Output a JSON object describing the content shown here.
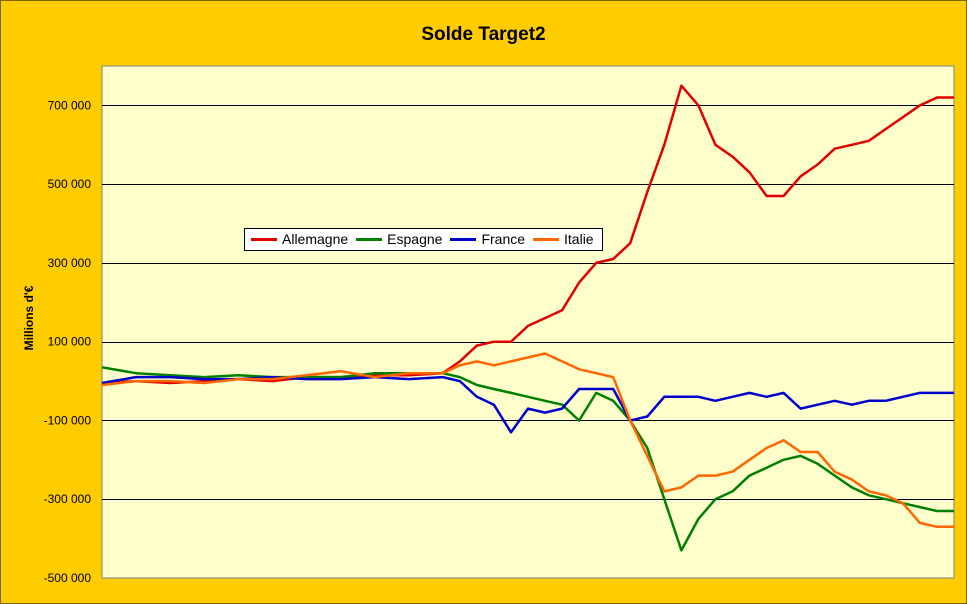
{
  "colors": {
    "background": "#ffcc00",
    "plot_area": "#ffffcc",
    "gridline": "#000000"
  },
  "chart_data": {
    "type": "line",
    "title": "Solde Target2",
    "xlabel": "",
    "ylabel": "Millions d'€",
    "ylim": [
      -500000,
      800000
    ],
    "yticks": [
      700000,
      500000,
      300000,
      100000,
      -100000,
      -300000,
      -500000
    ],
    "ytick_labels": [
      "700 000",
      "500 000",
      "300 000",
      "100 000",
      "-100 000",
      "-300 000",
      "-500 000"
    ],
    "grid": true,
    "legend_position": "upper-left-inside",
    "x": [
      0,
      4,
      8,
      12,
      16,
      20,
      24,
      28,
      32,
      36,
      40,
      42,
      44,
      46,
      48,
      50,
      52,
      54,
      56,
      58,
      60,
      62,
      64,
      66,
      68,
      70,
      72,
      74,
      76,
      78,
      80,
      82,
      84,
      86,
      88,
      90,
      92,
      94,
      96,
      98,
      100
    ],
    "series": [
      {
        "name": "Allemagne",
        "color": "#e00000",
        "values": [
          -5000,
          0,
          -5000,
          0,
          5000,
          0,
          10000,
          10000,
          15000,
          15000,
          20000,
          50000,
          90000,
          100000,
          100000,
          140000,
          160000,
          180000,
          250000,
          300000,
          310000,
          350000,
          480000,
          600000,
          750000,
          700000,
          600000,
          570000,
          530000,
          470000,
          470000,
          520000,
          550000,
          590000,
          600000,
          610000,
          640000,
          670000,
          700000,
          720000,
          720000
        ]
      },
      {
        "name": "Espagne",
        "color": "#008000",
        "values": [
          35000,
          20000,
          15000,
          10000,
          15000,
          10000,
          10000,
          10000,
          20000,
          20000,
          20000,
          10000,
          -10000,
          -20000,
          -30000,
          -40000,
          -50000,
          -60000,
          -100000,
          -30000,
          -50000,
          -100000,
          -170000,
          -300000,
          -430000,
          -350000,
          -300000,
          -280000,
          -240000,
          -220000,
          -200000,
          -190000,
          -210000,
          -240000,
          -270000,
          -290000,
          -300000,
          -310000,
          -320000,
          -330000,
          -330000
        ]
      },
      {
        "name": "France",
        "color": "#0000cc",
        "values": [
          -5000,
          10000,
          10000,
          5000,
          5000,
          10000,
          5000,
          5000,
          10000,
          5000,
          10000,
          0,
          -40000,
          -60000,
          -130000,
          -70000,
          -80000,
          -70000,
          -20000,
          -20000,
          -20000,
          -100000,
          -90000,
          -40000,
          -40000,
          -40000,
          -50000,
          -40000,
          -30000,
          -40000,
          -30000,
          -70000,
          -60000,
          -50000,
          -60000,
          -50000,
          -50000,
          -40000,
          -30000,
          -30000,
          -30000
        ]
      },
      {
        "name": "Italie",
        "color": "#ff6600",
        "values": [
          -10000,
          0,
          0,
          -5000,
          5000,
          5000,
          15000,
          25000,
          10000,
          20000,
          20000,
          40000,
          50000,
          40000,
          50000,
          60000,
          70000,
          50000,
          30000,
          20000,
          10000,
          -100000,
          -190000,
          -280000,
          -270000,
          -240000,
          -240000,
          -230000,
          -200000,
          -170000,
          -150000,
          -180000,
          -180000,
          -230000,
          -250000,
          -280000,
          -290000,
          -310000,
          -360000,
          -370000,
          -370000
        ]
      }
    ]
  }
}
